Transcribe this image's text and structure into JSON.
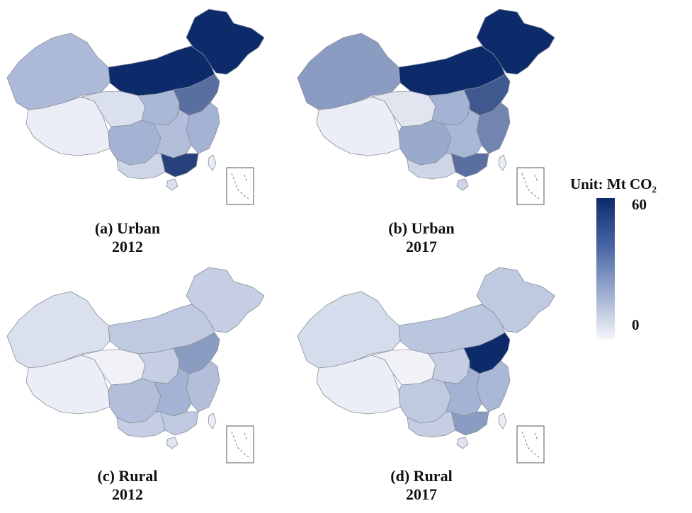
{
  "figure": {
    "panels": [
      {
        "id": "a",
        "label": "(a) Urban",
        "year": "2012"
      },
      {
        "id": "b",
        "label": "(b) Urban",
        "year": "2017"
      },
      {
        "id": "c",
        "label": "(c) Rural",
        "year": "2012"
      },
      {
        "id": "d",
        "label": "(d) Rural",
        "year": "2017"
      }
    ],
    "legend": {
      "title": "Unit: Mt CO",
      "title_sub": "2",
      "max_label": "60",
      "min_label": "0",
      "color_max": "#0d2a6b",
      "color_min": "#f6f7fb"
    }
  },
  "regions": {
    "names": [
      "northeast",
      "north_strip",
      "xinjiang",
      "tibet",
      "qinghai",
      "sichuan",
      "central_north",
      "north_china_plain",
      "east_coast",
      "central",
      "south_coast",
      "southwest",
      "hainan",
      "taiwan"
    ],
    "values": {
      "a": [
        60,
        60,
        27,
        4,
        10,
        30,
        28,
        45,
        30,
        25,
        55,
        15,
        10,
        5
      ],
      "b": [
        60,
        60,
        35,
        4,
        8,
        32,
        30,
        50,
        40,
        28,
        45,
        15,
        15,
        5
      ],
      "c": [
        18,
        20,
        10,
        4,
        2,
        25,
        18,
        35,
        25,
        30,
        20,
        18,
        8,
        4
      ],
      "d": [
        20,
        22,
        12,
        4,
        2,
        20,
        18,
        60,
        28,
        30,
        35,
        18,
        8,
        4
      ]
    }
  }
}
